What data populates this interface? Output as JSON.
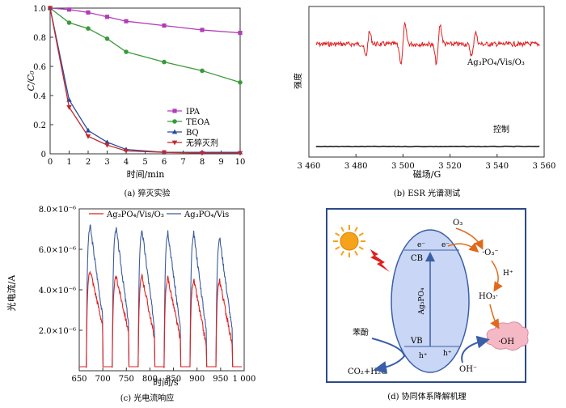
{
  "panel_a": {
    "caption": "(a) 猝灭实验",
    "chart_data": {
      "type": "line",
      "xlabel": "时间/min",
      "ylabel": "C/C₀",
      "xlim": [
        0,
        10
      ],
      "ylim": [
        0,
        1.0
      ],
      "x_ticks": [
        "0",
        "1",
        "2",
        "3",
        "4",
        "5",
        "6",
        "7",
        "8",
        "9",
        "10"
      ],
      "y_ticks": [
        "0",
        "0.2",
        "0.4",
        "0.6",
        "0.8",
        "1.0"
      ],
      "x": [
        0,
        1,
        2,
        3,
        4,
        6,
        8,
        10
      ],
      "series": [
        {
          "name": "IPA",
          "color": "#b23cb8",
          "marker": "square",
          "values": [
            1.0,
            0.99,
            0.97,
            0.94,
            0.91,
            0.88,
            0.85,
            0.83
          ]
        },
        {
          "name": "TEOA",
          "color": "#3a9a3a",
          "marker": "circle",
          "values": [
            1.0,
            0.9,
            0.86,
            0.79,
            0.7,
            0.63,
            0.57,
            0.49
          ]
        },
        {
          "name": "BQ",
          "color": "#2a4b9b",
          "marker": "triangle-up",
          "values": [
            1.0,
            0.37,
            0.16,
            0.08,
            0.03,
            0.01,
            0.01,
            0.01
          ]
        },
        {
          "name": "无猝灭剂",
          "color": "#c0282d",
          "marker": "triangle-down",
          "values": [
            1.0,
            0.32,
            0.12,
            0.06,
            0.02,
            0.01,
            0.005,
            0.005
          ]
        }
      ],
      "legend": "lower-center"
    }
  },
  "panel_b": {
    "caption": "(b) ESR 光谱测试",
    "chart_data": {
      "type": "line",
      "xlabel": "磁场/G",
      "ylabel": "强度",
      "xlim": [
        3460,
        3560
      ],
      "x_ticks": [
        "3 460",
        "3 480",
        "3 500",
        "3 520",
        "3 540",
        "3 560"
      ],
      "series": [
        {
          "name": "Ag₃PO₄/Vis/O₃",
          "color": "#e02020",
          "baseline": 0.75,
          "peaks_at": [
            3485,
            3500,
            3515,
            3530
          ],
          "peak_amplitude": [
            0.22,
            0.35,
            0.35,
            0.22
          ]
        },
        {
          "name": "控制",
          "color": "#111111",
          "baseline": 0.07
        }
      ]
    }
  },
  "panel_c": {
    "caption": "(c) 光电流响应",
    "chart_data": {
      "type": "line",
      "xlabel": "时间/s",
      "ylabel": "光电流/A",
      "xlim": [
        650,
        1000
      ],
      "ylim": [
        0,
        8e-06
      ],
      "x_ticks": [
        "650",
        "700",
        "750",
        "800",
        "850",
        "900",
        "950",
        "1 000"
      ],
      "y_ticks": [
        "2.0×10⁻⁶",
        "4.0×10⁻⁶",
        "6.0×10⁻⁶",
        "8.0×10⁻⁶"
      ],
      "light_on_starts": [
        665,
        720,
        775,
        830,
        885,
        940
      ],
      "pulse_width_s": 35,
      "series": [
        {
          "name": "Ag₃PO₄/Vis/O₃",
          "color": "#e02020",
          "peak_values": [
            5e-06,
            4.7e-06,
            4.7e-06,
            4.6e-06,
            4.5e-06,
            4.5e-06
          ],
          "end_values": [
            2.2e-06,
            1.9e-06,
            1.6e-06,
            1.5e-06,
            1.2e-06,
            1.2e-06
          ],
          "dark_value": 2e-07
        },
        {
          "name": "Ag₃PO₄/Vis",
          "color": "#3b5b9b",
          "peak_values": [
            7.2e-06,
            7.1e-06,
            7e-06,
            6.9e-06,
            6.8e-06,
            6.6e-06
          ],
          "end_values": [
            2.6e-06,
            2.3e-06,
            2.1e-06,
            2e-06,
            1.9e-06,
            1.9e-06
          ],
          "dark_value": 2e-07
        }
      ],
      "legend": "top"
    }
  },
  "panel_d": {
    "caption": "(d) 协同体系降解机理",
    "labels": {
      "o3": "O₃",
      "cb": "CB",
      "vb": "VB",
      "e1": "e⁻",
      "e2": "e⁻",
      "h1": "h⁺",
      "h2": "h⁺",
      "superoxide": "·O₃⁻",
      "hplus": "H⁺",
      "ho3": "HO₃·",
      "oh_radical": "·OH",
      "phenol": "苯酚",
      "products": "CO₂+H₂O",
      "hydroxide": "OH⁻",
      "catalyst": "Ag₃PO₄"
    },
    "colors": {
      "border": "#2c4a8c",
      "ellipse": "#c9d6f5",
      "sun": "#f6a21a",
      "arrow_orange": "#e06a1a",
      "arrow_blue": "#3a5fa8",
      "cloud": "#f5b9c6",
      "bolt": "#e02020"
    }
  }
}
